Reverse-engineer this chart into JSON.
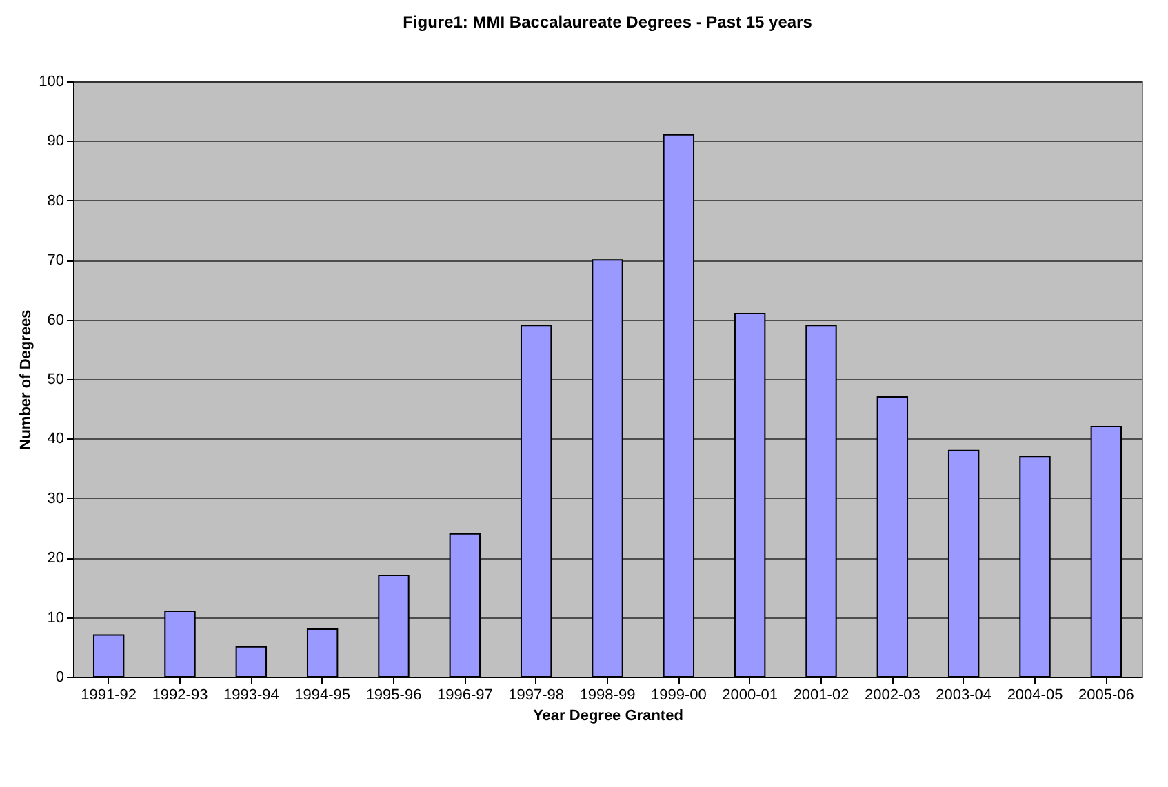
{
  "chart_data": {
    "type": "bar",
    "title": "Figure1: MMI Baccalaureate Degrees - Past 15 years",
    "xlabel": "Year Degree Granted",
    "ylabel": "Number of Degrees",
    "categories": [
      "1991-92",
      "1992-93",
      "1993-94",
      "1994-95",
      "1995-96",
      "1996-97",
      "1997-98",
      "1998-99",
      "1999-00",
      "2000-01",
      "2001-02",
      "2002-03",
      "2003-04",
      "2004-05",
      "2005-06"
    ],
    "values": [
      7,
      11,
      5,
      8,
      17,
      24,
      59,
      70,
      91,
      61,
      59,
      47,
      38,
      37,
      42
    ],
    "color": "#9999ff",
    "ylim": [
      0,
      100
    ],
    "yticks": [
      0,
      10,
      20,
      30,
      40,
      50,
      60,
      70,
      80,
      90,
      100
    ],
    "grid": "y"
  }
}
